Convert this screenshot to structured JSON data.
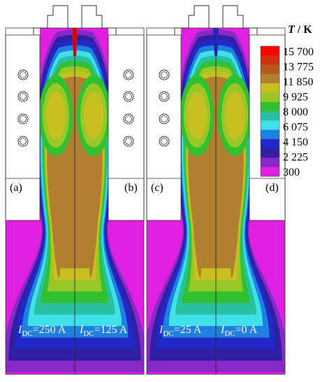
{
  "colorbar": {
    "symbol": "T",
    "unit": "/ K",
    "labels": [
      "15 700",
      "13 775",
      "11 850",
      "9 925",
      "8 000",
      "6 075",
      "4 150",
      "2 225",
      "300"
    ],
    "colors": [
      "#ff0000",
      "#d03010",
      "#b05a20",
      "#b08030",
      "#c8c020",
      "#98c828",
      "#30c030",
      "#28c0a0",
      "#40e0e8",
      "#2080e0",
      "#2028c8",
      "#3020a0",
      "#8828c8",
      "#e020e0"
    ]
  },
  "panels": [
    {
      "label": "(a)",
      "current": {
        "symbol": "I",
        "subscript": "DC",
        "value": "=250 A"
      }
    },
    {
      "label": "(b)",
      "current": {
        "symbol": "I",
        "subscript": "DC",
        "value": "=125 A"
      }
    },
    {
      "label": "(c)",
      "current": {
        "symbol": "I",
        "subscript": "DC",
        "value": "=25 A"
      }
    },
    {
      "label": "(d)",
      "current": {
        "symbol": "I",
        "subscript": "DC",
        "value": "=0 A"
      }
    }
  ]
}
